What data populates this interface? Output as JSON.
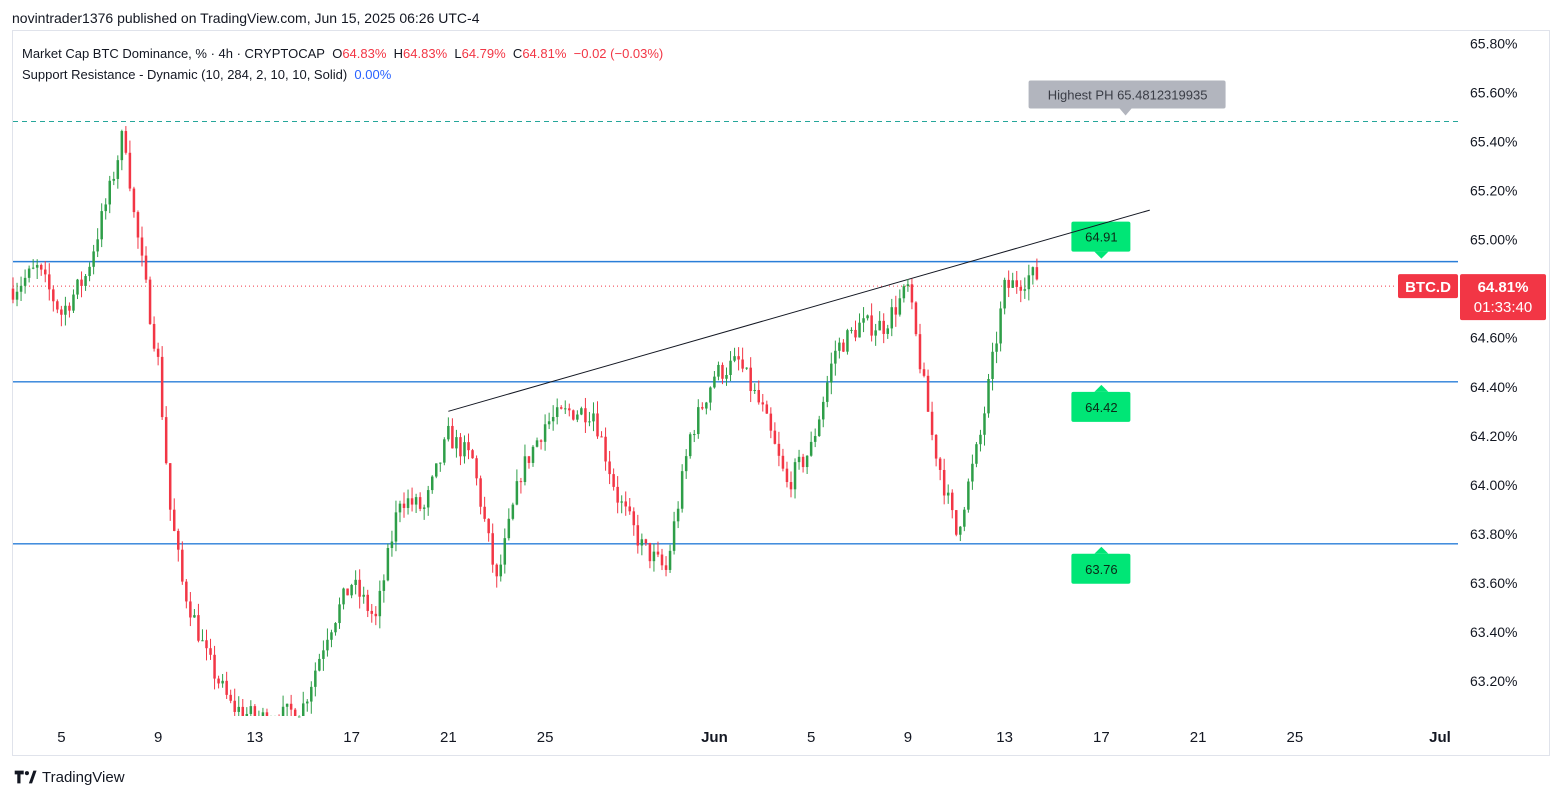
{
  "publisher_line": "novintrader1376 published on TradingView.com, Jun 15, 2025 06:26 UTC-4",
  "legend": {
    "symbol": "Market Cap BTC Dominance, % · 4h · CRYPTOCAP",
    "o_label": "O",
    "o_value": "64.83%",
    "h_label": "H",
    "h_value": "64.83%",
    "l_label": "L",
    "l_value": "64.79%",
    "c_label": "C",
    "c_value": "64.81%",
    "change": "−0.02 (−0.03%)",
    "indicator": "Support Resistance - Dynamic (10, 284, 2, 10, 10, Solid)",
    "indicator_value": "0.00%"
  },
  "footer": {
    "brand": "TradingView"
  },
  "colors": {
    "up": "#2e9e48",
    "down": "#f23645",
    "level": "#2a7ed8",
    "badge": "#00e676",
    "highest": "#b2b5be",
    "price_tag": "#f23645",
    "text": "#131722"
  },
  "chart_data": {
    "type": "candlestick",
    "symbol_label": "BTC.D",
    "current_price_label": "64.81%",
    "countdown_label": "01:33:40",
    "y_axis": {
      "range": [
        63.05,
        65.85
      ],
      "ticks": [
        "65.80%",
        "65.60%",
        "65.40%",
        "65.20%",
        "65.00%",
        "64.80%",
        "64.60%",
        "64.40%",
        "64.20%",
        "64.00%",
        "63.80%",
        "63.60%",
        "63.40%",
        "63.20%"
      ],
      "tick_values": [
        65.8,
        65.6,
        65.4,
        65.2,
        65.0,
        64.8,
        64.6,
        64.4,
        64.2,
        64.0,
        63.8,
        63.6,
        63.4,
        63.2
      ]
    },
    "x_axis": {
      "start": "2025-05-03",
      "end": "2025-07-01",
      "ticks": [
        {
          "label": "5",
          "date": "2025-05-05"
        },
        {
          "label": "9",
          "date": "2025-05-09"
        },
        {
          "label": "13",
          "date": "2025-05-13"
        },
        {
          "label": "17",
          "date": "2025-05-17"
        },
        {
          "label": "21",
          "date": "2025-05-21"
        },
        {
          "label": "25",
          "date": "2025-05-25"
        },
        {
          "label": "Jun",
          "date": "2025-06-01",
          "bold": true
        },
        {
          "label": "5",
          "date": "2025-06-05"
        },
        {
          "label": "9",
          "date": "2025-06-09"
        },
        {
          "label": "13",
          "date": "2025-06-13"
        },
        {
          "label": "17",
          "date": "2025-06-17"
        },
        {
          "label": "21",
          "date": "2025-06-21"
        },
        {
          "label": "25",
          "date": "2025-06-25"
        },
        {
          "label": "Jul",
          "date": "2025-07-01",
          "bold": true
        }
      ]
    },
    "levels": [
      {
        "price": 64.91,
        "label": "64.91"
      },
      {
        "price": 64.42,
        "label": "64.42"
      },
      {
        "price": 63.76,
        "label": "63.76"
      }
    ],
    "highest_ph": {
      "price": 65.4812319935,
      "label": "Highest PH 65.4812319935"
    },
    "trendline": {
      "from": {
        "date": "2025-05-21",
        "price": 64.3
      },
      "to": {
        "date": "2025-06-19",
        "price": 65.12
      }
    },
    "current_price": 64.81,
    "candles_from": "2025-05-03",
    "candles_until": "2025-06-14",
    "close_path": [
      {
        "date": "2025-05-03",
        "price": 64.8
      },
      {
        "date": "2025-05-04",
        "price": 64.88
      },
      {
        "date": "2025-05-05",
        "price": 64.7
      },
      {
        "date": "2025-05-06",
        "price": 64.85
      },
      {
        "date": "2025-05-07",
        "price": 65.2
      },
      {
        "date": "2025-05-07.6",
        "price": 65.45
      },
      {
        "date": "2025-05-08",
        "price": 65.1
      },
      {
        "date": "2025-05-09",
        "price": 64.5
      },
      {
        "date": "2025-05-09.5",
        "price": 63.9
      },
      {
        "date": "2025-05-10",
        "price": 63.6
      },
      {
        "date": "2025-05-11",
        "price": 63.3
      },
      {
        "date": "2025-05-12",
        "price": 63.1
      },
      {
        "date": "2025-05-13",
        "price": 63.05
      },
      {
        "date": "2025-05-14",
        "price": 63.05
      },
      {
        "date": "2025-05-15",
        "price": 63.1
      },
      {
        "date": "2025-05-16",
        "price": 63.4
      },
      {
        "date": "2025-05-17",
        "price": 63.6
      },
      {
        "date": "2025-05-18",
        "price": 63.45
      },
      {
        "date": "2025-05-19",
        "price": 63.95
      },
      {
        "date": "2025-05-20",
        "price": 63.9
      },
      {
        "date": "2025-05-21",
        "price": 64.2
      },
      {
        "date": "2025-05-22",
        "price": 64.1
      },
      {
        "date": "2025-05-23",
        "price": 63.6
      },
      {
        "date": "2025-05-24",
        "price": 64.05
      },
      {
        "date": "2025-05-25",
        "price": 64.25
      },
      {
        "date": "2025-05-26",
        "price": 64.3
      },
      {
        "date": "2025-05-27",
        "price": 64.3
      },
      {
        "date": "2025-05-28",
        "price": 63.95
      },
      {
        "date": "2025-05-29",
        "price": 63.75
      },
      {
        "date": "2025-05-30",
        "price": 63.65
      },
      {
        "date": "2025-05-31",
        "price": 64.2
      },
      {
        "date": "2025-06-01",
        "price": 64.45
      },
      {
        "date": "2025-06-02",
        "price": 64.5
      },
      {
        "date": "2025-06-03",
        "price": 64.3
      },
      {
        "date": "2025-06-04",
        "price": 64.0
      },
      {
        "date": "2025-06-05",
        "price": 64.15
      },
      {
        "date": "2025-06-06",
        "price": 64.55
      },
      {
        "date": "2025-06-07",
        "price": 64.65
      },
      {
        "date": "2025-06-08",
        "price": 64.65
      },
      {
        "date": "2025-06-09",
        "price": 64.8
      },
      {
        "date": "2025-06-10",
        "price": 64.2
      },
      {
        "date": "2025-06-11",
        "price": 63.8
      },
      {
        "date": "2025-06-12",
        "price": 64.2
      },
      {
        "date": "2025-06-13",
        "price": 64.8
      },
      {
        "date": "2025-06-14",
        "price": 64.85
      }
    ]
  }
}
